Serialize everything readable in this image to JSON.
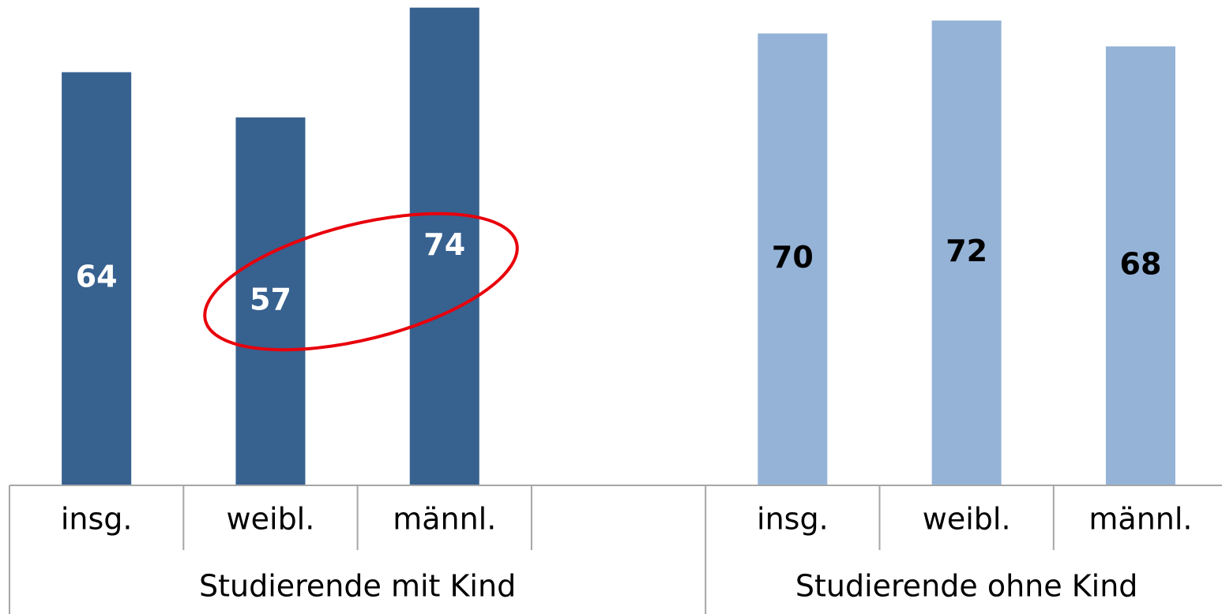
{
  "chart_data": {
    "type": "bar",
    "categories": [
      "insg.",
      "weibl.",
      "männl.",
      null,
      "insg.",
      "weibl.",
      "männl."
    ],
    "values": [
      64,
      57,
      74,
      null,
      70,
      72,
      68
    ],
    "colors": [
      "#37618f",
      "#37618f",
      "#37618f",
      null,
      "#95b3d7",
      "#95b3d7",
      "#95b3d7"
    ],
    "label_colors": [
      "#ffffff",
      "#ffffff",
      "#ffffff",
      null,
      "#000000",
      "#000000",
      "#000000"
    ],
    "groups": [
      {
        "label": "Studierende mit Kind",
        "span": 4
      },
      {
        "label": "Studierende ohne Kind",
        "span": 3
      }
    ],
    "ylim": [
      0,
      75
    ]
  }
}
